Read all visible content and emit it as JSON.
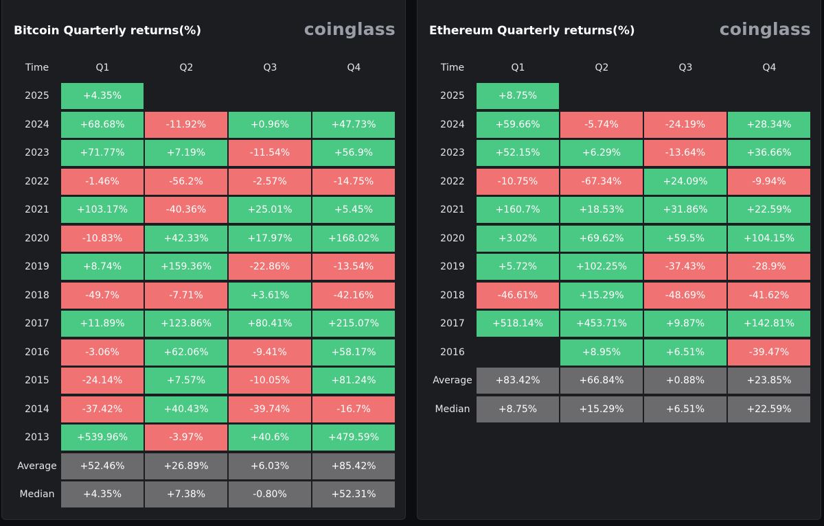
{
  "colors": {
    "positive": "#4ac984",
    "negative": "#f07272",
    "stat": "#6b6b6d",
    "panel_bg": "#1b1d21",
    "page_bg": "#0b0d10"
  },
  "chart_data": [
    {
      "type": "table",
      "id": "btc",
      "title": "Bitcoin Quarterly returns(%)",
      "logo": "coinglass",
      "header": [
        "Time",
        "Q1",
        "Q2",
        "Q3",
        "Q4"
      ],
      "rows": [
        {
          "label": "2025",
          "values": [
            "+4.35%",
            null,
            null,
            null
          ]
        },
        {
          "label": "2024",
          "values": [
            "+68.68%",
            "-11.92%",
            "+0.96%",
            "+47.73%"
          ]
        },
        {
          "label": "2023",
          "values": [
            "+71.77%",
            "+7.19%",
            "-11.54%",
            "+56.9%"
          ]
        },
        {
          "label": "2022",
          "values": [
            "-1.46%",
            "-56.2%",
            "-2.57%",
            "-14.75%"
          ]
        },
        {
          "label": "2021",
          "values": [
            "+103.17%",
            "-40.36%",
            "+25.01%",
            "+5.45%"
          ]
        },
        {
          "label": "2020",
          "values": [
            "-10.83%",
            "+42.33%",
            "+17.97%",
            "+168.02%"
          ]
        },
        {
          "label": "2019",
          "values": [
            "+8.74%",
            "+159.36%",
            "-22.86%",
            "-13.54%"
          ]
        },
        {
          "label": "2018",
          "values": [
            "-49.7%",
            "-7.71%",
            "+3.61%",
            "-42.16%"
          ]
        },
        {
          "label": "2017",
          "values": [
            "+11.89%",
            "+123.86%",
            "+80.41%",
            "+215.07%"
          ]
        },
        {
          "label": "2016",
          "values": [
            "-3.06%",
            "+62.06%",
            "-9.41%",
            "+58.17%"
          ]
        },
        {
          "label": "2015",
          "values": [
            "-24.14%",
            "+7.57%",
            "-10.05%",
            "+81.24%"
          ]
        },
        {
          "label": "2014",
          "values": [
            "-37.42%",
            "+40.43%",
            "-39.74%",
            "-16.7%"
          ]
        },
        {
          "label": "2013",
          "values": [
            "+539.96%",
            "-3.97%",
            "+40.6%",
            "+479.59%"
          ]
        },
        {
          "label": "Average",
          "stat": true,
          "values": [
            "+52.46%",
            "+26.89%",
            "+6.03%",
            "+85.42%"
          ]
        },
        {
          "label": "Median",
          "stat": true,
          "values": [
            "+4.35%",
            "+7.38%",
            "-0.80%",
            "+52.31%"
          ]
        }
      ]
    },
    {
      "type": "table",
      "id": "eth",
      "title": "Ethereum Quarterly returns(%)",
      "logo": "coinglass",
      "header": [
        "Time",
        "Q1",
        "Q2",
        "Q3",
        "Q4"
      ],
      "rows": [
        {
          "label": "2025",
          "values": [
            "+8.75%",
            null,
            null,
            null
          ]
        },
        {
          "label": "2024",
          "values": [
            "+59.66%",
            "-5.74%",
            "-24.19%",
            "+28.34%"
          ]
        },
        {
          "label": "2023",
          "values": [
            "+52.15%",
            "+6.29%",
            "-13.64%",
            "+36.66%"
          ]
        },
        {
          "label": "2022",
          "values": [
            "-10.75%",
            "-67.34%",
            "+24.09%",
            "-9.94%"
          ]
        },
        {
          "label": "2021",
          "values": [
            "+160.7%",
            "+18.53%",
            "+31.86%",
            "+22.59%"
          ]
        },
        {
          "label": "2020",
          "values": [
            "+3.02%",
            "+69.62%",
            "+59.5%",
            "+104.15%"
          ]
        },
        {
          "label": "2019",
          "values": [
            "+5.72%",
            "+102.25%",
            "-37.43%",
            "-28.9%"
          ]
        },
        {
          "label": "2018",
          "values": [
            "-46.61%",
            "+15.29%",
            "-48.69%",
            "-41.62%"
          ]
        },
        {
          "label": "2017",
          "values": [
            "+518.14%",
            "+453.71%",
            "+9.87%",
            "+142.81%"
          ]
        },
        {
          "label": "2016",
          "values": [
            null,
            "+8.95%",
            "+6.51%",
            "-39.47%"
          ]
        },
        {
          "label": "Average",
          "stat": true,
          "values": [
            "+83.42%",
            "+66.84%",
            "+0.88%",
            "+23.85%"
          ]
        },
        {
          "label": "Median",
          "stat": true,
          "values": [
            "+8.75%",
            "+15.29%",
            "+6.51%",
            "+22.59%"
          ]
        }
      ]
    }
  ]
}
